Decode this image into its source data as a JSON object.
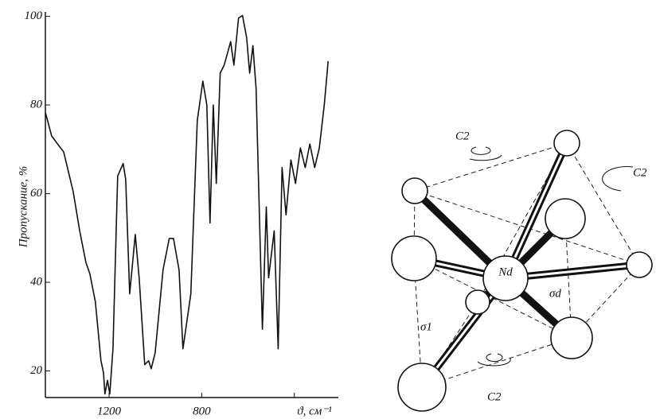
{
  "chart_data": {
    "type": "line",
    "y_label": "Пропускание, %",
    "x_label": "ϑ, см⁻¹",
    "x": [
      1475,
      1448,
      1396,
      1355,
      1327,
      1300,
      1283,
      1259,
      1235,
      1224,
      1218,
      1207,
      1197,
      1183,
      1163,
      1139,
      1128,
      1111,
      1087,
      1070,
      1046,
      1029,
      1018,
      1001,
      967,
      940,
      922,
      898,
      881,
      847,
      819,
      795,
      778,
      764,
      750,
      737,
      720,
      703,
      675,
      661,
      641,
      624,
      606,
      593,
      579,
      565,
      538,
      521,
      511,
      487,
      470,
      453,
      436,
      415,
      395,
      374,
      353,
      333,
      312,
      292,
      271,
      254
    ],
    "values": [
      78.3,
      73,
      69.4,
      60.5,
      51.6,
      44.5,
      41.9,
      35.6,
      22.3,
      19.6,
      14.8,
      17.9,
      14.8,
      25,
      64,
      66.8,
      63.2,
      37.4,
      50.8,
      41,
      21.4,
      22.3,
      20.5,
      24.1,
      42.8,
      49.9,
      49.9,
      42.8,
      25,
      37.4,
      76.5,
      85.4,
      80,
      53.4,
      80,
      62.3,
      87.2,
      89,
      94.3,
      89,
      99.6,
      100.2,
      95.2,
      87.2,
      93.4,
      83.6,
      29.4,
      57,
      41,
      51.6,
      25,
      65.9,
      55.2,
      67.6,
      62.3,
      70.3,
      65.9,
      71.2,
      65.9,
      70.3,
      80,
      89.9
    ],
    "color": "#111111",
    "xlim": [
      1475,
      210
    ],
    "ylim": [
      14,
      101
    ],
    "xticks": [
      1200,
      800,
      {
        "value": 400,
        "label": null
      }
    ],
    "yticks": [
      20,
      40,
      60,
      80,
      100
    ]
  },
  "diagram": {
    "center": "Nd",
    "labels": [
      "C2",
      "C2",
      "C2",
      "σd",
      "σ1"
    ]
  }
}
